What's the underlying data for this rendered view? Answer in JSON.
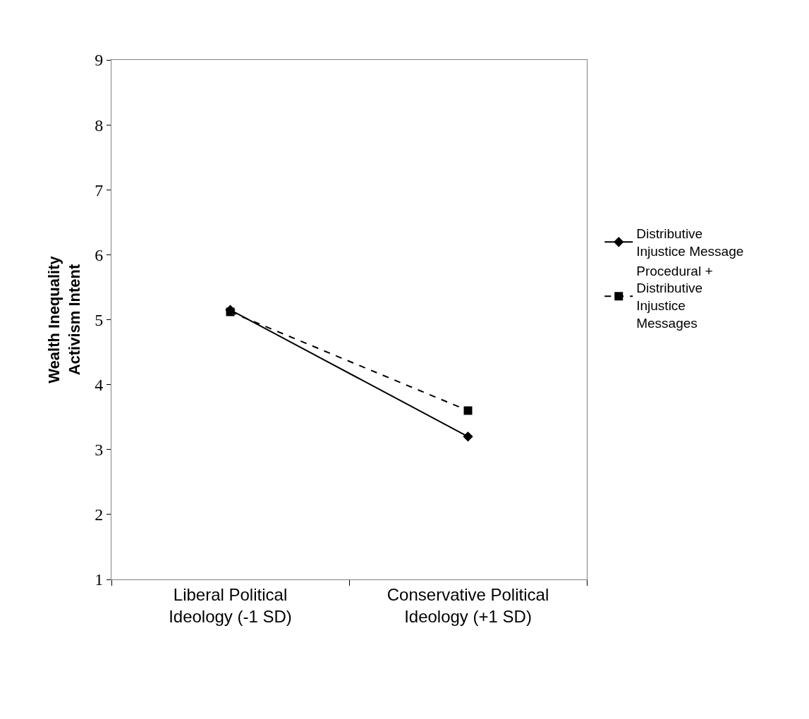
{
  "chart_data": {
    "type": "line",
    "ylabel": "Wealth Inequality Activism Intent",
    "categories": [
      "Liberal Political Ideology (-1 SD)",
      "Conservative Political Ideology (+1 SD)"
    ],
    "series": [
      {
        "name": "Distributive Injustice Message",
        "color": "#000000",
        "values": [
          5.15,
          3.2
        ],
        "marker": "diamond",
        "line_style": "solid"
      },
      {
        "name": "Procedural + Distributive Injustice Messages",
        "color": "#000000",
        "values": [
          5.12,
          3.6
        ],
        "marker": "square",
        "line_style": "dashed"
      }
    ],
    "ylim": [
      1,
      9
    ],
    "yticks": [
      1,
      2,
      3,
      4,
      5,
      6,
      7,
      8,
      9
    ],
    "legend": "right"
  }
}
